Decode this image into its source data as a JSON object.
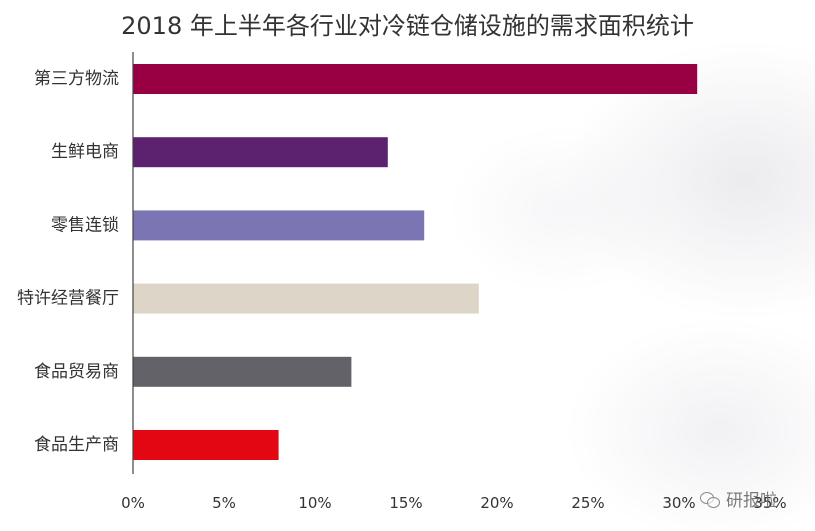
{
  "chart_data": {
    "type": "bar",
    "orientation": "horizontal",
    "title": "2018 年上半年各行业对冷链仓储设施的需求面积统计",
    "categories": [
      "第三方物流",
      "生鲜电商",
      "零售连锁",
      "特许经营餐厅",
      "食品贸易商",
      "食品生产商"
    ],
    "values": [
      31,
      14,
      16,
      19,
      12,
      8
    ],
    "unit": "%",
    "bar_colors": [
      "#990044",
      "#5c2270",
      "#7b75b4",
      "#ddd5c8",
      "#626268",
      "#e30613"
    ],
    "xlim": [
      0,
      35
    ],
    "xticks": [
      "0%",
      "5%",
      "10%",
      "15%",
      "20%",
      "25%",
      "30%",
      "35%"
    ],
    "grid": false,
    "legend": "none"
  },
  "watermark": {
    "text": "研报啦",
    "icon": "wechat-icon"
  }
}
